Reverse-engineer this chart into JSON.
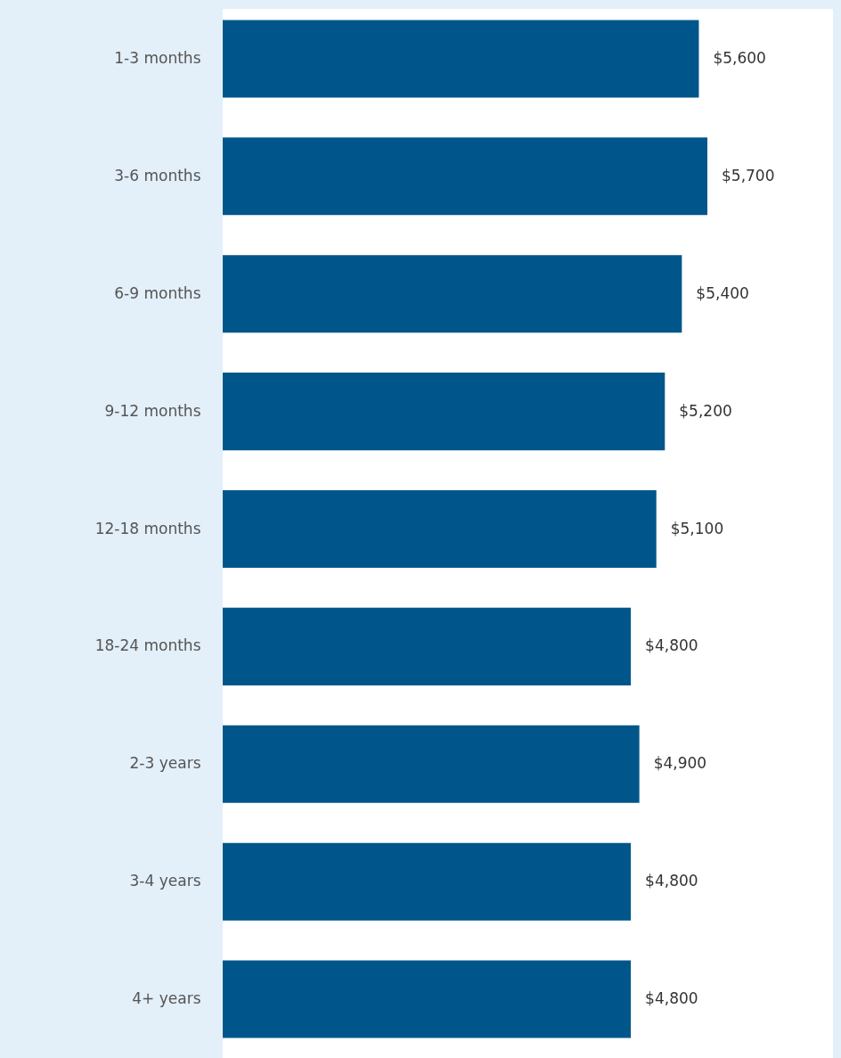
{
  "chart_data": {
    "type": "bar",
    "orientation": "horizontal",
    "categories": [
      "1-3 months",
      "3-6 months",
      "6-9 months",
      "9-12 months",
      "12-18 months",
      "18-24 months",
      "2-3 years",
      "3-4 years",
      "4+ years"
    ],
    "values": [
      5600,
      5700,
      5400,
      5200,
      5100,
      4800,
      4900,
      4800,
      4800
    ],
    "value_labels": [
      "$5,600",
      "$5,700",
      "$5,400",
      "$5,200",
      "$5,100",
      "$4,800",
      "$4,900",
      "$4,800",
      "$4,800"
    ],
    "color": "#00568a"
  }
}
